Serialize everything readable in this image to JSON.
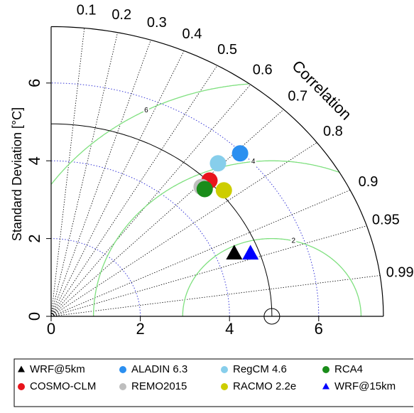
{
  "chart_data": {
    "type": "taylor",
    "y_label": "Standard Deviation [°C]",
    "correlation_label": "Correlation",
    "sdlim": [
      0,
      7.45
    ],
    "xticks": [
      0,
      2,
      4,
      6
    ],
    "yticks": [
      0,
      2,
      4,
      6
    ],
    "correlation_ticks": [
      0.1,
      0.2,
      0.3,
      0.4,
      0.5,
      0.6,
      0.7,
      0.8,
      0.9,
      0.95,
      0.99
    ],
    "rms_ticks": [
      2,
      4,
      6
    ],
    "reference_sd": 4.95,
    "series": [
      {
        "name": "WRF@5km",
        "color": "#000000",
        "marker": "triangle",
        "sd": 4.41,
        "correlation": 0.931
      },
      {
        "name": "COSMO-CLM",
        "color": "#e8141c",
        "marker": "circle",
        "sd": 4.98,
        "correlation": 0.713
      },
      {
        "name": "ALADIN 6.3",
        "color": "#2b8ff0",
        "marker": "circle",
        "sd": 5.96,
        "correlation": 0.711
      },
      {
        "name": "REMO2015",
        "color": "#bebebe",
        "marker": "circle",
        "sd": 4.74,
        "correlation": 0.712
      },
      {
        "name": "RegCM 4.6",
        "color": "#87ceeb",
        "marker": "circle",
        "sd": 5.43,
        "correlation": 0.689
      },
      {
        "name": "RACMO 2.2e",
        "color": "#cdcd00",
        "marker": "circle",
        "sd": 5.05,
        "correlation": 0.767
      },
      {
        "name": "RCA4",
        "color": "#1a8c1a",
        "marker": "circle",
        "sd": 4.75,
        "correlation": 0.725
      },
      {
        "name": "WRF@15km",
        "color": "#0000ff",
        "marker": "triangle",
        "sd": 4.75,
        "correlation": 0.941
      }
    ]
  }
}
